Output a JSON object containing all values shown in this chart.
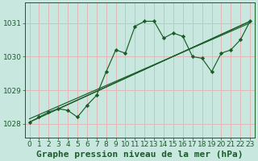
{
  "title": "Graphe pression niveau de la mer (hPa)",
  "bg_color": "#c8e8df",
  "plot_bg_color": "#c8e8df",
  "grid_color": "#e0b8b8",
  "line_color": "#1a5c28",
  "marker_color": "#1a5c28",
  "xlim": [
    -0.5,
    23.5
  ],
  "ylim": [
    1027.6,
    1031.6
  ],
  "yticks": [
    1028,
    1029,
    1030,
    1031
  ],
  "xticks": [
    0,
    1,
    2,
    3,
    4,
    5,
    6,
    7,
    8,
    9,
    10,
    11,
    12,
    13,
    14,
    15,
    16,
    17,
    18,
    19,
    20,
    21,
    22,
    23
  ],
  "main_series": [
    [
      0,
      1028.05
    ],
    [
      1,
      1028.2
    ],
    [
      2,
      1028.35
    ],
    [
      3,
      1028.45
    ],
    [
      4,
      1028.4
    ],
    [
      5,
      1028.2
    ],
    [
      6,
      1028.55
    ],
    [
      7,
      1028.85
    ],
    [
      8,
      1029.55
    ],
    [
      9,
      1030.2
    ],
    [
      10,
      1030.1
    ],
    [
      11,
      1030.9
    ],
    [
      12,
      1031.05
    ],
    [
      13,
      1031.05
    ],
    [
      14,
      1030.55
    ],
    [
      15,
      1030.7
    ],
    [
      16,
      1030.6
    ],
    [
      17,
      1030.0
    ],
    [
      18,
      1029.95
    ],
    [
      19,
      1029.55
    ],
    [
      20,
      1030.1
    ],
    [
      21,
      1030.2
    ],
    [
      22,
      1030.5
    ],
    [
      23,
      1031.05
    ]
  ],
  "trend_lines": [
    [
      [
        0,
        1028.05
      ],
      [
        23,
        1031.05
      ]
    ],
    [
      [
        0,
        1028.15
      ],
      [
        23,
        1031.0
      ]
    ],
    [
      [
        3,
        1028.45
      ],
      [
        23,
        1031.05
      ]
    ]
  ],
  "title_fontsize": 8,
  "tick_fontsize": 6.5,
  "ylabel_fontsize": 6.5
}
